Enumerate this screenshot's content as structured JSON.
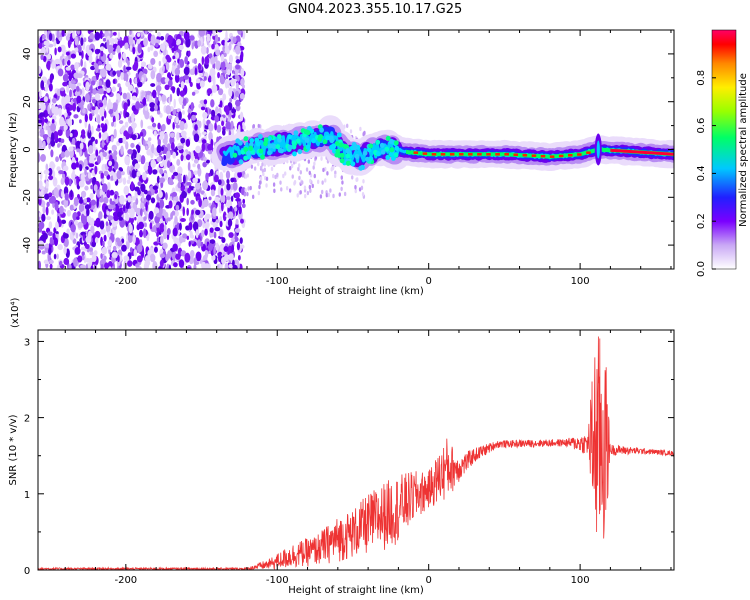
{
  "title": "GN04.2023.355.10.17.G25",
  "chart_data": [
    {
      "type": "heatmap",
      "xlabel": "Height of straight line (km)",
      "ylabel": "Frequency (Hz)",
      "xlim": [
        -258,
        162
      ],
      "ylim": [
        -50,
        50
      ],
      "x_ticks": [
        -200,
        -100,
        0,
        100
      ],
      "y_ticks": [
        -40,
        -20,
        0,
        20,
        40
      ],
      "colorbar": {
        "label": "Normalized spectral amplitude",
        "range": [
          0,
          1
        ],
        "ticks": [
          "0.0",
          "0.2",
          "0.4",
          "0.6",
          "0.8"
        ]
      },
      "ridge": {
        "description_points": [
          {
            "x": -135,
            "y": -3
          },
          {
            "x": -120,
            "y": 0
          },
          {
            "x": -100,
            "y": 2
          },
          {
            "x": -80,
            "y": 4
          },
          {
            "x": -65,
            "y": 6
          },
          {
            "x": -55,
            "y": -2
          },
          {
            "x": -45,
            "y": -3
          },
          {
            "x": -30,
            "y": 1
          },
          {
            "x": -15,
            "y": -1
          },
          {
            "x": 0,
            "y": -2
          },
          {
            "x": 50,
            "y": -2
          },
          {
            "x": 80,
            "y": -3
          },
          {
            "x": 100,
            "y": -2
          },
          {
            "x": 112,
            "y": 0
          },
          {
            "x": 162,
            "y": -2
          }
        ]
      },
      "noise_region_x": [
        -258,
        -122
      ]
    },
    {
      "type": "line",
      "xlabel": "Height of straight line (km)",
      "ylabel": "SNR (10 * v/v)",
      "y_multiplier": "(x10⁴)",
      "xlim": [
        -258,
        162
      ],
      "ylim": [
        0,
        3.15
      ],
      "x_ticks": [
        -200,
        -100,
        0,
        100
      ],
      "y_ticks": [
        0,
        1,
        2,
        3
      ],
      "color": "#ee3333",
      "envelope": [
        {
          "x": -258,
          "lo": 0.0,
          "hi": 0.03
        },
        {
          "x": -120,
          "lo": 0.0,
          "hi": 0.03
        },
        {
          "x": -105,
          "lo": 0.0,
          "hi": 0.15
        },
        {
          "x": -90,
          "lo": 0.02,
          "hi": 0.35
        },
        {
          "x": -75,
          "lo": 0.05,
          "hi": 0.45
        },
        {
          "x": -60,
          "lo": 0.1,
          "hi": 0.7
        },
        {
          "x": -50,
          "lo": 0.15,
          "hi": 0.8
        },
        {
          "x": -40,
          "lo": 0.2,
          "hi": 1.0
        },
        {
          "x": -30,
          "lo": 0.25,
          "hi": 1.15
        },
        {
          "x": -20,
          "lo": 0.35,
          "hi": 1.25
        },
        {
          "x": -10,
          "lo": 0.6,
          "hi": 1.3
        },
        {
          "x": 0,
          "lo": 0.8,
          "hi": 1.3
        },
        {
          "x": 12,
          "lo": 0.9,
          "hi": 1.75
        },
        {
          "x": 20,
          "lo": 1.15,
          "hi": 1.5
        },
        {
          "x": 30,
          "lo": 1.4,
          "hi": 1.6
        },
        {
          "x": 45,
          "lo": 1.6,
          "hi": 1.7
        },
        {
          "x": 90,
          "lo": 1.62,
          "hi": 1.72
        },
        {
          "x": 105,
          "lo": 1.5,
          "hi": 1.8
        },
        {
          "x": 110,
          "lo": 0.2,
          "hi": 3.1
        },
        {
          "x": 116,
          "lo": 0.1,
          "hi": 3.15
        },
        {
          "x": 120,
          "lo": 1.5,
          "hi": 1.65
        },
        {
          "x": 140,
          "lo": 1.52,
          "hi": 1.6
        },
        {
          "x": 162,
          "lo": 1.5,
          "hi": 1.56
        }
      ]
    }
  ]
}
